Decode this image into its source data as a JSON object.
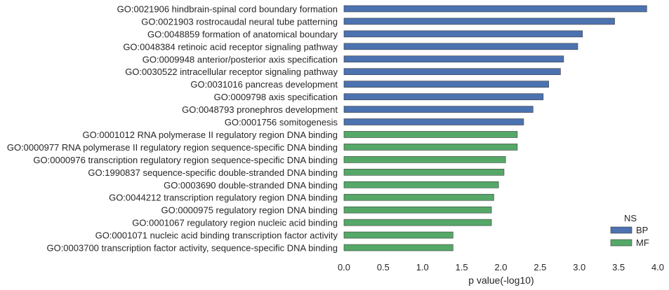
{
  "chart_data": {
    "type": "bar",
    "orientation": "horizontal",
    "xlabel": "p value(-log10)",
    "xlim": [
      0,
      4.0
    ],
    "xticks": [
      "0.0",
      "0.5",
      "1.0",
      "1.5",
      "2.0",
      "2.5",
      "3.0",
      "3.5",
      "4.0"
    ],
    "grid": false,
    "legend": {
      "title": "NS",
      "placement": "lower-right",
      "entries": [
        {
          "label": "BP",
          "color": "#4c72b0"
        },
        {
          "label": "MF",
          "color": "#55a868"
        }
      ]
    },
    "categories": [
      "GO:0021906 hindbrain-spinal cord boundary formation",
      "GO:0021903 rostrocaudal neural tube patterning",
      "GO:0048859 formation of anatomical boundary",
      "GO:0048384 retinoic acid receptor signaling pathway",
      "GO:0009948 anterior/posterior axis specification",
      "GO:0030522 intracellular receptor signaling pathway",
      "GO:0031016 pancreas development",
      "GO:0009798 axis specification",
      "GO:0048793 pronephros development",
      "GO:0001756 somitogenesis",
      "GO:0001012 RNA polymerase II regulatory region DNA binding",
      "GO:0000977 RNA polymerase II regulatory region sequence-specific DNA binding",
      "GO:0000976 transcription regulatory region sequence-specific DNA binding",
      "GO:1990837 sequence-specific double-stranded DNA binding",
      "GO:0003690 double-stranded DNA binding",
      "GO:0044212 transcription regulatory region DNA binding",
      "GO:0000975 regulatory region DNA binding",
      "GO:0001067 regulatory region nucleic acid binding",
      "GO:0001071 nucleic acid binding transcription factor activity",
      "GO:0003700 transcription factor activity, sequence-specific DNA binding"
    ],
    "series": [
      {
        "name": "BP",
        "color": "#4c72b0",
        "values": [
          3.86,
          3.45,
          3.04,
          2.98,
          2.8,
          2.76,
          2.61,
          2.54,
          2.41,
          2.29,
          null,
          null,
          null,
          null,
          null,
          null,
          null,
          null,
          null,
          null
        ]
      },
      {
        "name": "MF",
        "color": "#55a868",
        "values": [
          null,
          null,
          null,
          null,
          null,
          null,
          null,
          null,
          null,
          null,
          2.21,
          2.21,
          2.06,
          2.04,
          1.97,
          1.91,
          1.88,
          1.88,
          1.39,
          1.39
        ]
      }
    ]
  }
}
